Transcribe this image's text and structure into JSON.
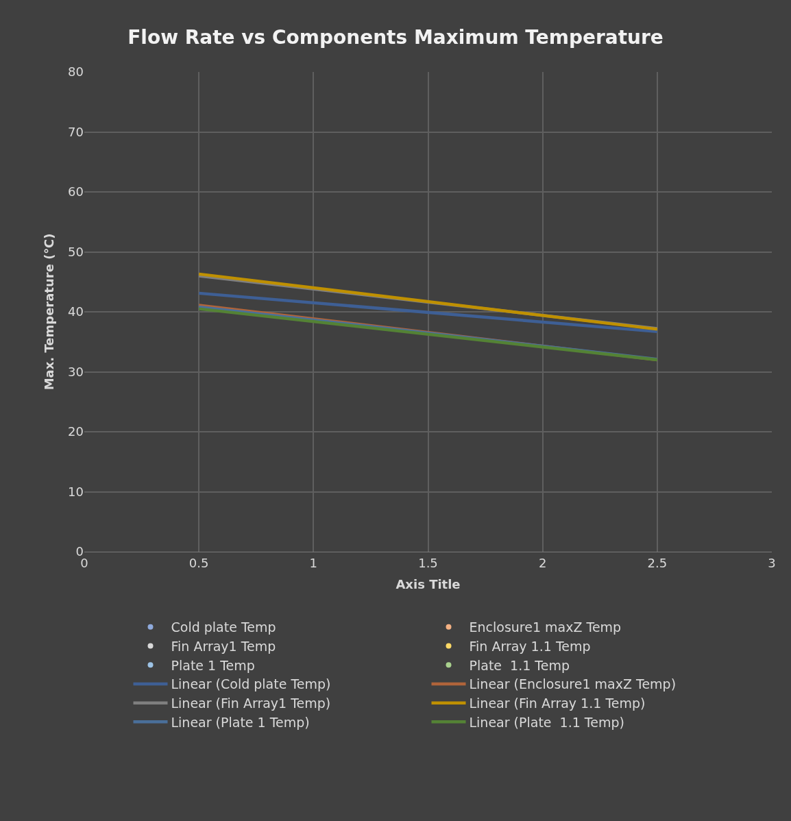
{
  "chart_data": {
    "type": "line",
    "title": "Flow Rate vs Components Maximum Temperature",
    "xlabel": "Axis Title",
    "ylabel": "Max. Temperature (℃)",
    "x": [
      0.5,
      2.5
    ],
    "series": [
      {
        "name": "Cold plate Temp",
        "type": "scatter",
        "color": "#8faadc",
        "values": [
          null,
          null
        ]
      },
      {
        "name": "Enclosure1 maxZ Temp",
        "type": "scatter",
        "color": "#f4b183",
        "values": [
          null,
          null
        ]
      },
      {
        "name": "Fin Array1 Temp",
        "type": "scatter",
        "color": "#d9d9d9",
        "values": [
          null,
          null
        ]
      },
      {
        "name": "Fin Array 1.1 Temp",
        "type": "scatter",
        "color": "#ffd966",
        "values": [
          null,
          null
        ]
      },
      {
        "name": "Plate 1 Temp",
        "type": "scatter",
        "color": "#9dc3e6",
        "values": [
          null,
          null
        ]
      },
      {
        "name": "Plate  1.1 Temp",
        "type": "scatter",
        "color": "#a9d18e",
        "values": [
          null,
          null
        ]
      },
      {
        "name": "Linear (Cold plate Temp)",
        "color": "#3e5f95",
        "values": [
          43.1,
          36.7
        ]
      },
      {
        "name": "Linear (Enclosure1 maxZ Temp)",
        "color": "#b0643a",
        "values": [
          41.1,
          32.0
        ]
      },
      {
        "name": "Linear (Fin Array1 Temp)",
        "color": "#7f7f7f",
        "values": [
          46.0,
          37.2
        ]
      },
      {
        "name": "Linear (Fin Array 1.1 Temp)",
        "color": "#bf9000",
        "values": [
          46.3,
          37.1
        ]
      },
      {
        "name": "Linear (Plate 1 Temp)",
        "color": "#4a6f9a",
        "values": [
          40.8,
          32.1
        ]
      },
      {
        "name": "Linear (Plate  1.1 Temp)",
        "color": "#548235",
        "values": [
          40.5,
          32.0
        ]
      }
    ],
    "xlim": [
      0,
      3
    ],
    "xticks": [
      0,
      0.5,
      1,
      1.5,
      2,
      2.5,
      3
    ],
    "ylim": [
      0,
      80
    ],
    "yticks": [
      0,
      10,
      20,
      30,
      40,
      50,
      60,
      70,
      80
    ],
    "grid": true,
    "legend": "bottom"
  }
}
